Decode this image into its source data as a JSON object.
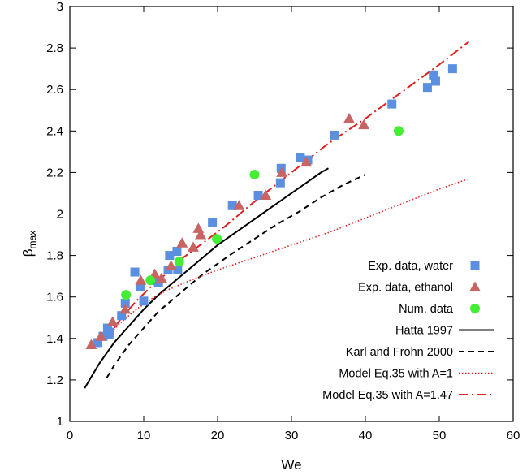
{
  "chart_data": {
    "type": "scatter",
    "xlabel": "We",
    "ylabel": {
      "main": "β",
      "sub": "max"
    },
    "xlim": [
      0,
      60
    ],
    "ylim": [
      1,
      3
    ],
    "xticks": [
      "0",
      "10",
      "20",
      "30",
      "40",
      "50",
      "60"
    ],
    "yticks": [
      "1",
      "1.2",
      "1.4",
      "1.6",
      "1.8",
      "2",
      "2.2",
      "2.4",
      "2.6",
      "2.8",
      "3"
    ],
    "xtick_values": [
      0,
      10,
      20,
      30,
      40,
      50,
      60
    ],
    "ytick_values": [
      1,
      1.2,
      1.4,
      1.6,
      1.8,
      2,
      2.2,
      2.4,
      2.6,
      2.8,
      3
    ],
    "grid": false,
    "legend_position": "bottom-right",
    "series": [
      {
        "name": "Exp. data, water",
        "kind": "points",
        "marker": "square",
        "color": "#5b8fe0",
        "points": [
          [
            3.8,
            1.38
          ],
          [
            4.5,
            1.41
          ],
          [
            5.1,
            1.45
          ],
          [
            5.4,
            1.43
          ],
          [
            5.3,
            1.42
          ],
          [
            7.0,
            1.51
          ],
          [
            7.5,
            1.57
          ],
          [
            8.8,
            1.72
          ],
          [
            9.5,
            1.65
          ],
          [
            10.0,
            1.58
          ],
          [
            12.0,
            1.67
          ],
          [
            13.3,
            1.73
          ],
          [
            13.5,
            1.8
          ],
          [
            14.5,
            1.82
          ],
          [
            14.6,
            1.73
          ],
          [
            19.3,
            1.96
          ],
          [
            22.0,
            2.04
          ],
          [
            25.5,
            2.09
          ],
          [
            28.5,
            2.15
          ],
          [
            28.6,
            2.22
          ],
          [
            31.2,
            2.27
          ],
          [
            32.2,
            2.26
          ],
          [
            35.8,
            2.38
          ],
          [
            43.6,
            2.53
          ],
          [
            48.4,
            2.61
          ],
          [
            49.2,
            2.67
          ],
          [
            49.5,
            2.64
          ],
          [
            51.8,
            2.7
          ]
        ]
      },
      {
        "name": "Exp. data, ethanol",
        "kind": "points",
        "marker": "triangle",
        "color": "#c86464",
        "points": [
          [
            2.9,
            1.37
          ],
          [
            4.2,
            1.41
          ],
          [
            5.8,
            1.48
          ],
          [
            7.5,
            1.54
          ],
          [
            9.6,
            1.68
          ],
          [
            11.5,
            1.71
          ],
          [
            12.4,
            1.69
          ],
          [
            13.7,
            1.75
          ],
          [
            15.2,
            1.86
          ],
          [
            16.7,
            1.84
          ],
          [
            17.4,
            1.93
          ],
          [
            17.7,
            1.9
          ],
          [
            22.9,
            2.04
          ],
          [
            26.5,
            2.09
          ],
          [
            28.7,
            2.2
          ],
          [
            32.0,
            2.25
          ],
          [
            37.8,
            2.46
          ],
          [
            39.8,
            2.43
          ]
        ]
      },
      {
        "name": "Num. data",
        "kind": "points",
        "marker": "circle",
        "color": "#44ee33",
        "points": [
          [
            7.6,
            1.61
          ],
          [
            10.9,
            1.68
          ],
          [
            14.8,
            1.77
          ],
          [
            19.9,
            1.88
          ],
          [
            25.0,
            2.19
          ],
          [
            44.5,
            2.4
          ]
        ]
      },
      {
        "name": "Hatta 1997",
        "kind": "line",
        "dash": "solid",
        "color": "#000000",
        "points": [
          [
            2,
            1.16
          ],
          [
            3,
            1.22
          ],
          [
            4,
            1.28
          ],
          [
            5,
            1.33
          ],
          [
            6,
            1.38
          ],
          [
            7,
            1.42
          ],
          [
            8,
            1.46
          ],
          [
            10,
            1.54
          ],
          [
            12,
            1.61
          ],
          [
            14,
            1.67
          ],
          [
            16,
            1.73
          ],
          [
            18,
            1.79
          ],
          [
            20,
            1.85
          ],
          [
            22,
            1.9
          ],
          [
            24,
            1.95
          ],
          [
            26,
            2.0
          ],
          [
            28,
            2.05
          ],
          [
            30,
            2.1
          ],
          [
            32,
            2.15
          ],
          [
            34,
            2.2
          ],
          [
            35,
            2.22
          ]
        ]
      },
      {
        "name": "Karl and Frohn 2000",
        "kind": "line",
        "dash": "dashed",
        "color": "#000000",
        "points": [
          [
            5,
            1.21
          ],
          [
            6,
            1.27
          ],
          [
            7,
            1.32
          ],
          [
            8,
            1.37
          ],
          [
            10,
            1.45
          ],
          [
            12,
            1.53
          ],
          [
            14,
            1.59
          ],
          [
            16,
            1.65
          ],
          [
            18,
            1.71
          ],
          [
            20,
            1.76
          ],
          [
            22,
            1.81
          ],
          [
            25,
            1.88
          ],
          [
            28,
            1.95
          ],
          [
            31,
            2.01
          ],
          [
            34,
            2.08
          ],
          [
            37,
            2.14
          ],
          [
            40,
            2.19
          ]
        ]
      },
      {
        "name": "Model Eq.35 with A=1",
        "kind": "line",
        "dash": "dotted",
        "color": "#e02020",
        "points": [
          [
            5,
            1.41
          ],
          [
            7,
            1.48
          ],
          [
            9,
            1.54
          ],
          [
            11,
            1.59
          ],
          [
            13,
            1.63
          ],
          [
            15,
            1.66
          ],
          [
            17,
            1.69
          ],
          [
            20,
            1.73
          ],
          [
            25,
            1.79
          ],
          [
            30,
            1.85
          ],
          [
            35,
            1.91
          ],
          [
            40,
            1.98
          ],
          [
            45,
            2.05
          ],
          [
            50,
            2.12
          ],
          [
            54,
            2.17
          ]
        ]
      },
      {
        "name": "Model Eq.35 with A=1.47",
        "kind": "line",
        "dash": "dashdot",
        "color": "#e02020",
        "points": [
          [
            5,
            1.4
          ],
          [
            7,
            1.5
          ],
          [
            9,
            1.58
          ],
          [
            11,
            1.65
          ],
          [
            13,
            1.71
          ],
          [
            15,
            1.78
          ],
          [
            18,
            1.86
          ],
          [
            21,
            1.94
          ],
          [
            25,
            2.06
          ],
          [
            30,
            2.2
          ],
          [
            35,
            2.34
          ],
          [
            40,
            2.46
          ],
          [
            45,
            2.59
          ],
          [
            50,
            2.72
          ],
          [
            54,
            2.83
          ]
        ]
      }
    ]
  }
}
